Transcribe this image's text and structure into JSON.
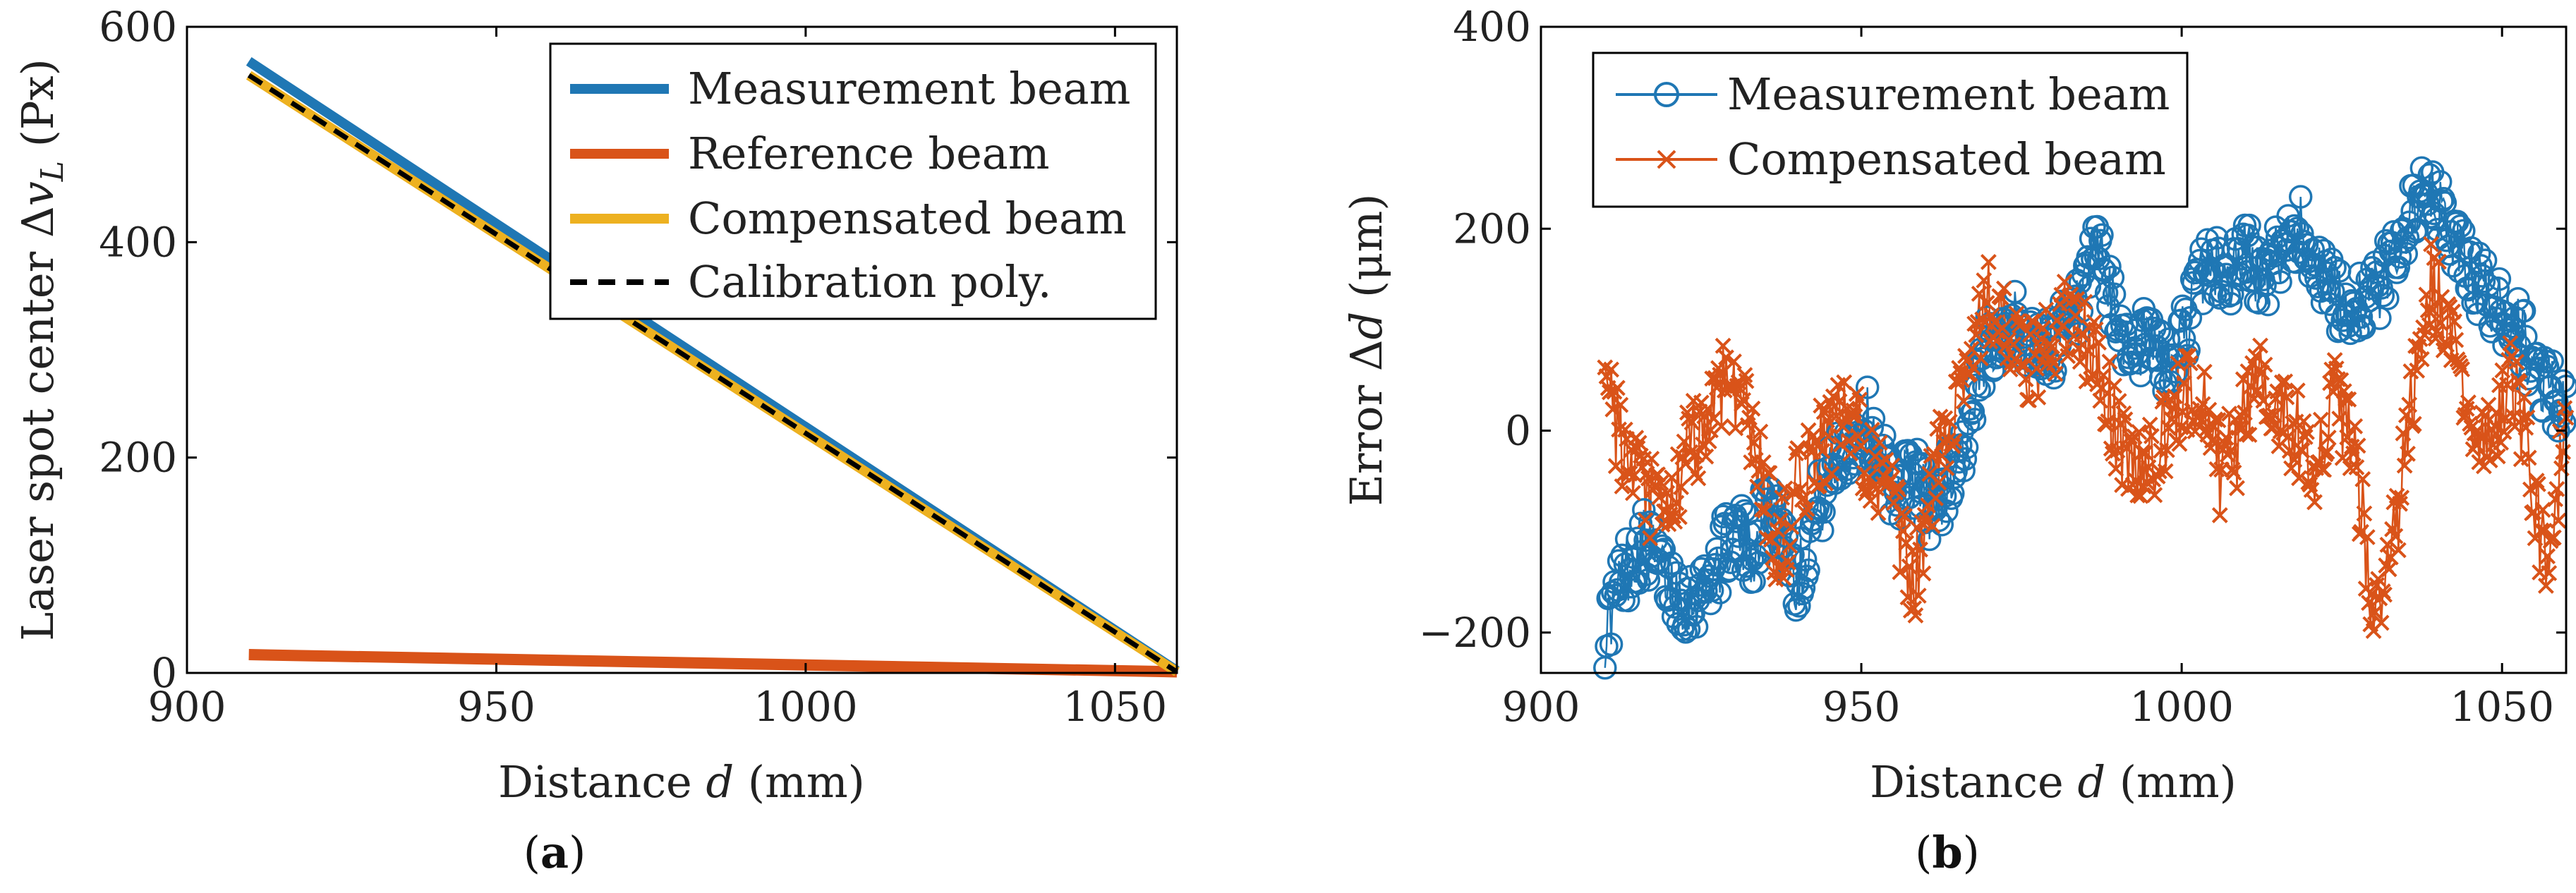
{
  "chart_data": [
    {
      "id": "a",
      "type": "line",
      "caption": "(a)",
      "caption_open": "(",
      "caption_letter": "a",
      "caption_close": ")",
      "xlabel": "Distance d (mm)",
      "xlabel_parts": {
        "pre": "Distance ",
        "var": "d",
        "post": " (mm)"
      },
      "ylabel": "Laser spot center Δv_L (Px)",
      "ylabel_parts": {
        "pre": "Laser spot center Δ",
        "var": "v",
        "sub": "L",
        "post": " (Px)"
      },
      "xlim": [
        900,
        1060
      ],
      "ylim": [
        0,
        600
      ],
      "xticks": [
        900,
        950,
        1000,
        1050
      ],
      "yticks": [
        0,
        200,
        400,
        600
      ],
      "legend_position": "top-right",
      "series": [
        {
          "name": "Measurement beam",
          "color": "#1f77b4",
          "style": "solid-thick",
          "x": [
            910,
            1060
          ],
          "y": [
            568,
            2
          ]
        },
        {
          "name": "Reference beam",
          "color": "#d95319",
          "style": "solid-thick",
          "x": [
            910,
            1060
          ],
          "y": [
            17,
            1
          ]
        },
        {
          "name": "Compensated beam",
          "color": "#edb120",
          "style": "solid-thick",
          "x": [
            910,
            1060
          ],
          "y": [
            555,
            1
          ]
        },
        {
          "name": "Calibration poly.",
          "color": "#000000",
          "style": "dashed",
          "x": [
            910,
            1060
          ],
          "y": [
            555,
            1
          ]
        }
      ]
    },
    {
      "id": "b",
      "type": "scatter",
      "caption": "(b)",
      "caption_open": "(",
      "caption_letter": "b",
      "caption_close": ")",
      "xlabel": "Distance d (mm)",
      "xlabel_parts": {
        "pre": "Distance ",
        "var": "d",
        "post": " (mm)"
      },
      "ylabel": "Error Δd (μm)",
      "ylabel_parts": {
        "pre": "Error Δ",
        "var": "d",
        "post": " (μm)"
      },
      "xlim": [
        900,
        1060
      ],
      "ylim": [
        -240,
        400
      ],
      "xticks": [
        900,
        950,
        1000,
        1050
      ],
      "yticks": [
        -200,
        0,
        200,
        400
      ],
      "legend_position": "top-left",
      "series": [
        {
          "name": "Measurement beam",
          "color": "#1f77b4",
          "marker": "circle",
          "trend_x": [
            910,
            913,
            916,
            920,
            923,
            926,
            930,
            933,
            936,
            940,
            943,
            947,
            951,
            955,
            958,
            961,
            964,
            967,
            970,
            973,
            976,
            979,
            982,
            985,
            987,
            989,
            992,
            995,
            998,
            1001,
            1004,
            1007,
            1010,
            1013,
            1016,
            1019,
            1022,
            1025,
            1028,
            1031,
            1034,
            1037,
            1040,
            1043,
            1046,
            1049,
            1052,
            1055,
            1058,
            1060
          ],
          "trend_y": [
            -200,
            -140,
            -110,
            -150,
            -170,
            -150,
            -100,
            -120,
            -60,
            -150,
            -80,
            -20,
            10,
            -60,
            -40,
            -80,
            -40,
            0,
            90,
            110,
            90,
            80,
            100,
            130,
            190,
            120,
            80,
            90,
            60,
            110,
            170,
            150,
            180,
            140,
            190,
            200,
            150,
            120,
            130,
            140,
            190,
            230,
            220,
            180,
            150,
            120,
            110,
            60,
            40,
            10
          ],
          "spread": 35
        },
        {
          "name": "Compensated beam",
          "color": "#d95319",
          "marker": "cross",
          "trend_x": [
            910,
            913,
            916,
            920,
            923,
            926,
            929,
            931,
            934,
            937,
            940,
            943,
            947,
            951,
            955,
            958,
            961,
            964,
            967,
            970,
            973,
            976,
            979,
            982,
            985,
            988,
            991,
            994,
            997,
            1000,
            1003,
            1006,
            1009,
            1012,
            1015,
            1018,
            1021,
            1024,
            1027,
            1030,
            1033,
            1036,
            1039,
            1042,
            1045,
            1048,
            1051,
            1054,
            1057,
            1060
          ],
          "trend_y": [
            50,
            -30,
            -60,
            -90,
            -20,
            10,
            60,
            40,
            -30,
            -120,
            -60,
            -20,
            10,
            -20,
            -80,
            -160,
            -60,
            20,
            80,
            130,
            90,
            60,
            80,
            110,
            90,
            40,
            -20,
            -40,
            -10,
            30,
            50,
            -40,
            -10,
            70,
            20,
            0,
            -30,
            30,
            -20,
            -190,
            -120,
            30,
            150,
            80,
            20,
            -20,
            60,
            -10,
            -150,
            10
          ],
          "spread": 45
        }
      ]
    }
  ]
}
